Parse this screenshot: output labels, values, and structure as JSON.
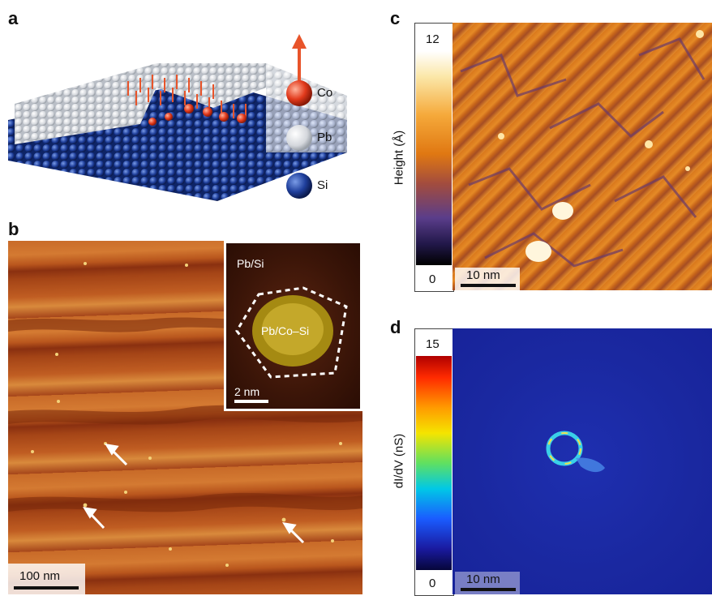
{
  "panels": {
    "a": {
      "letter": "a",
      "labels": {
        "co": "Co",
        "pb": "Pb",
        "si": "Si"
      },
      "colors": {
        "co": "#e23a1c",
        "pb": "#e8e8e8",
        "si": "#1f3f9c"
      }
    },
    "b": {
      "letter": "b",
      "scalebar": "100 nm",
      "inset": {
        "label_top": "Pb/Si",
        "label_center": "Pb/Co–Si",
        "scalebar": "2 nm"
      }
    },
    "c": {
      "letter": "c",
      "colorbar": {
        "max": "12",
        "min": "0",
        "label": "Height (Å)"
      },
      "scalebar": "10 nm"
    },
    "d": {
      "letter": "d",
      "colorbar": {
        "max": "15",
        "min": "0",
        "label": "dI/dV (nS)"
      },
      "scalebar": "10 nm"
    }
  }
}
